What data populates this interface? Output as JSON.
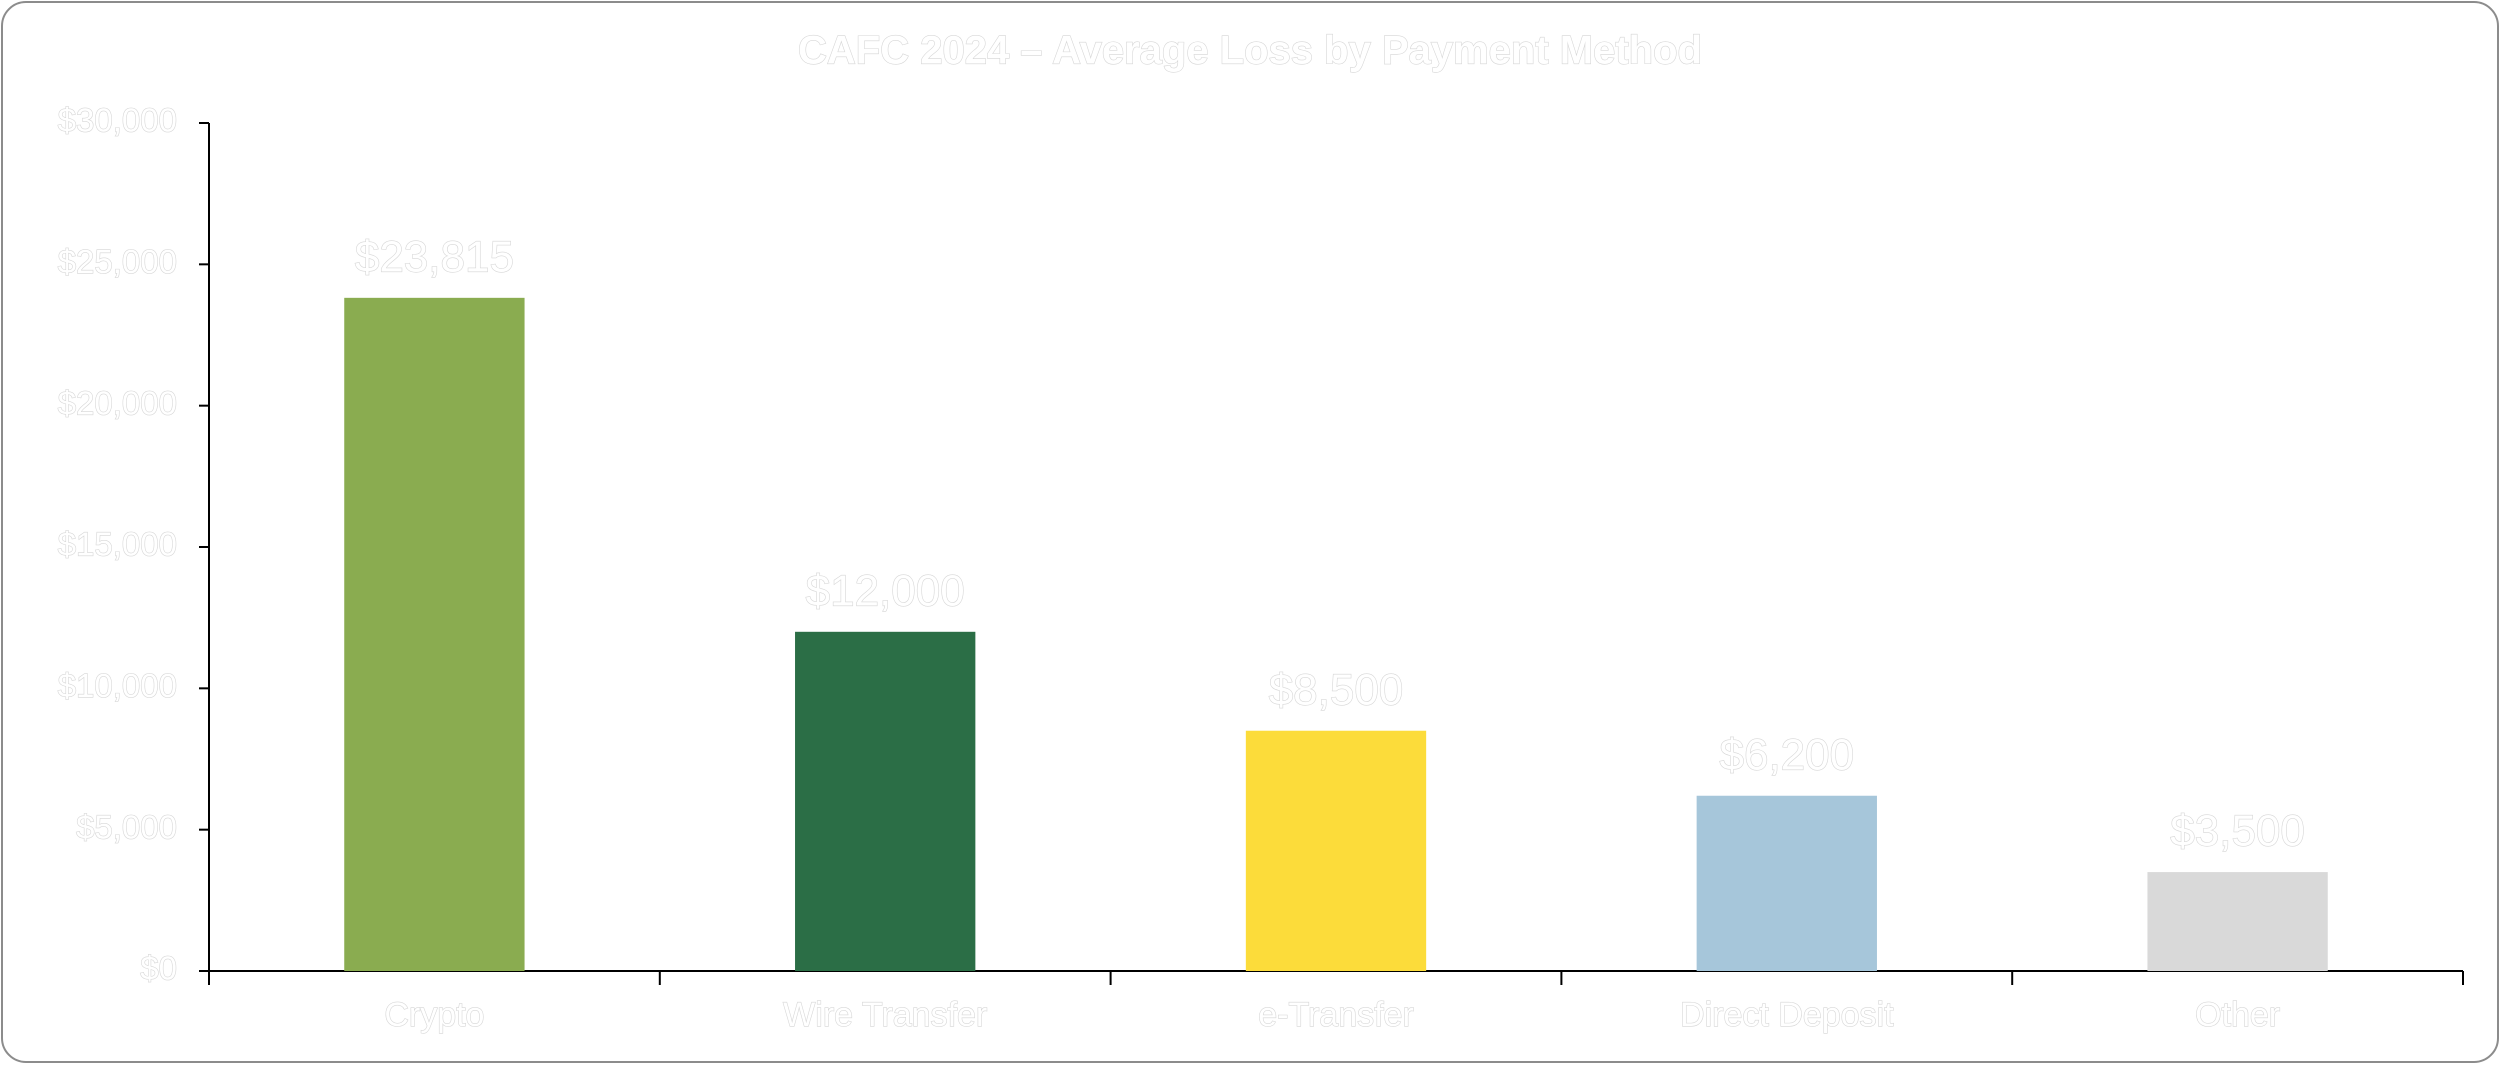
{
  "chart_data": {
    "type": "bar",
    "title": "CAFC 2024 – Average Loss by Payment Method",
    "categories": [
      "Crypto",
      "Wire Transfer",
      "e-Transfer",
      "Direct Deposit",
      "Other"
    ],
    "values": [
      23815,
      12000,
      8500,
      6200,
      3500
    ],
    "value_labels": [
      "$23,815",
      "$12,000",
      "$8,500",
      "$6,200",
      "$3,500"
    ],
    "colors": [
      "#8aac50",
      "#2b6e46",
      "#fcdc3a",
      "#a6c6da",
      "#d9d9d9"
    ],
    "ylim": [
      0,
      30000
    ],
    "yticks": [
      {
        "value": 0,
        "label": "$0"
      },
      {
        "value": 5000,
        "label": "$5,000"
      },
      {
        "value": 10000,
        "label": "$10,000"
      },
      {
        "value": 15000,
        "label": "$15,000"
      },
      {
        "value": 20000,
        "label": "$20,000"
      },
      {
        "value": 25000,
        "label": "$25,000"
      },
      {
        "value": 30000,
        "label": "$30,000"
      }
    ],
    "grid": false
  }
}
